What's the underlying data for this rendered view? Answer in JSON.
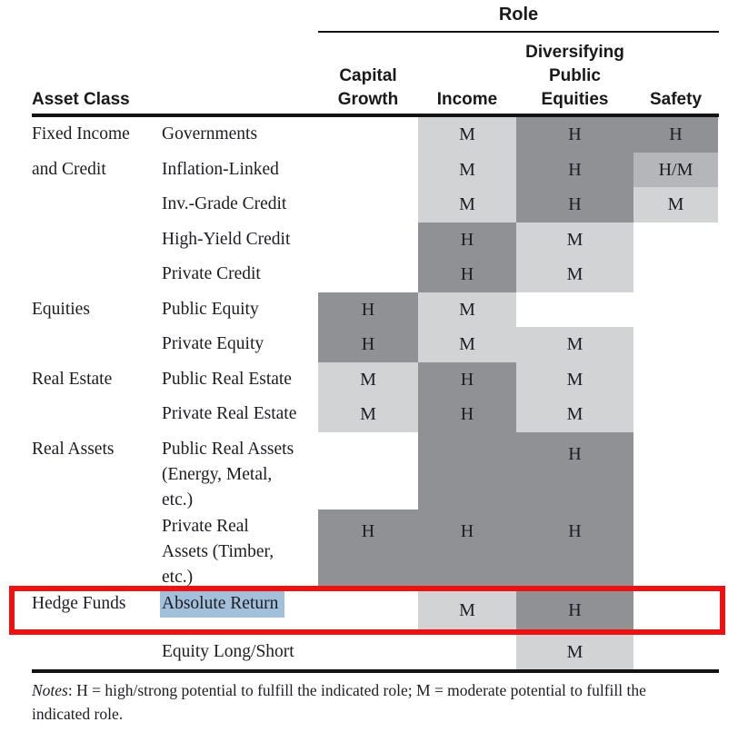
{
  "colors": {
    "dark": "#8f9194",
    "light": "#d2d3d5",
    "medium": "#b4b6b9",
    "selection": "#a2c0d9",
    "red": "#ee1111"
  },
  "header": {
    "role_label": "Role",
    "asset_class_label": "Asset Class",
    "columns": [
      "Capital\nGrowth",
      "Income",
      "Diversifying\nPublic\nEquities",
      "Safety"
    ]
  },
  "table": {
    "rows": [
      {
        "group": "Fixed Income\nand Credit",
        "name": "Governments",
        "cells": [
          null,
          {
            "label": "M",
            "shade": "light"
          },
          {
            "label": "H",
            "shade": "dark"
          },
          {
            "label": "H",
            "shade": "dark"
          }
        ]
      },
      {
        "group": "",
        "name": "Inflation-Linked",
        "cells": [
          null,
          {
            "label": "M",
            "shade": "light"
          },
          {
            "label": "H",
            "shade": "dark"
          },
          {
            "label": "H/M",
            "shade": "medium"
          }
        ]
      },
      {
        "group": "",
        "name": "Inv.-Grade Credit",
        "cells": [
          null,
          {
            "label": "M",
            "shade": "light"
          },
          {
            "label": "H",
            "shade": "dark"
          },
          {
            "label": "M",
            "shade": "light"
          }
        ]
      },
      {
        "group": "",
        "name": "High-Yield Credit",
        "cells": [
          null,
          {
            "label": "H",
            "shade": "dark"
          },
          {
            "label": "M",
            "shade": "light"
          },
          null
        ]
      },
      {
        "group": "",
        "name": "Private Credit",
        "cells": [
          null,
          {
            "label": "H",
            "shade": "dark"
          },
          {
            "label": "M",
            "shade": "light"
          },
          null
        ]
      },
      {
        "group": "Equities",
        "name": "Public Equity",
        "cells": [
          {
            "label": "H",
            "shade": "dark"
          },
          {
            "label": "M",
            "shade": "light"
          },
          null,
          null
        ]
      },
      {
        "group": "",
        "name": "Private Equity",
        "cells": [
          {
            "label": "H",
            "shade": "dark"
          },
          {
            "label": "M",
            "shade": "light"
          },
          {
            "label": "M",
            "shade": "light"
          },
          null
        ]
      },
      {
        "group": "Real Estate",
        "name": "Public Real Estate",
        "cells": [
          {
            "label": "M",
            "shade": "light"
          },
          {
            "label": "H",
            "shade": "dark"
          },
          {
            "label": "M",
            "shade": "light"
          },
          null
        ]
      },
      {
        "group": "",
        "name": "Private Real Estate",
        "cells": [
          {
            "label": "M",
            "shade": "light"
          },
          {
            "label": "H",
            "shade": "dark"
          },
          {
            "label": "M",
            "shade": "light"
          },
          null
        ]
      },
      {
        "group": "Real Assets",
        "name": "Public Real Assets\n(Energy, Metal,\netc.)",
        "cells": [
          null,
          {
            "label": "",
            "shade": "dark"
          },
          {
            "label": "H",
            "shade": "dark"
          },
          null
        ]
      },
      {
        "group": "",
        "name": "Private Real\nAssets (Timber,\netc.)",
        "cells": [
          {
            "label": "H",
            "shade": "dark"
          },
          {
            "label": "H",
            "shade": "dark"
          },
          {
            "label": "H",
            "shade": "dark"
          },
          null
        ]
      },
      {
        "group": "Hedge Funds",
        "name": "Absolute Return",
        "selected": true,
        "annotated": true,
        "cells": [
          null,
          {
            "label": "M",
            "shade": "light"
          },
          {
            "label": "H",
            "shade": "dark"
          },
          null
        ]
      },
      {
        "group": "",
        "name": "Equity Long/Short",
        "cells": [
          null,
          null,
          {
            "label": "M",
            "shade": "light"
          },
          null
        ]
      }
    ]
  },
  "notes": {
    "prefix": "Notes",
    "body": ": H = high/strong potential to fulfill the indicated role; M = moderate potential to fulfill the\nindicated role."
  }
}
